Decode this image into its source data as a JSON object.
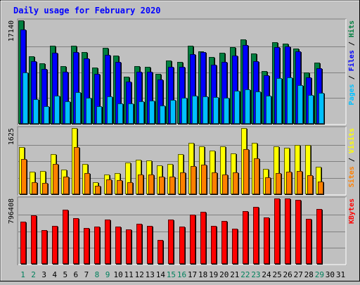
{
  "chart_data": {
    "title": "Daily usage for February 2020",
    "type": "bar",
    "categories": [
      "1",
      "2",
      "3",
      "4",
      "5",
      "6",
      "7",
      "8",
      "9",
      "10",
      "11",
      "12",
      "13",
      "14",
      "15",
      "16",
      "17",
      "18",
      "19",
      "20",
      "21",
      "22",
      "23",
      "24",
      "25",
      "26",
      "27",
      "28",
      "29",
      "30",
      "31"
    ],
    "weekend_days": [
      "1",
      "2",
      "8",
      "9",
      "15",
      "16",
      "22",
      "23",
      "29"
    ],
    "panels": [
      {
        "id": "pages-files-hits",
        "max_label": "17140",
        "ymax": 17140,
        "side_labels": [
          {
            "text": "Pages",
            "color": "#00c0ff"
          },
          {
            "text": " / ",
            "color": "#000000"
          },
          {
            "text": "Files",
            "color": "#0000ff"
          },
          {
            "text": " / ",
            "color": "#000000"
          },
          {
            "text": "Hits",
            "color": "#008040"
          }
        ],
        "series": [
          {
            "name": "Hits",
            "color": "#008040",
            "values": [
              17140,
              11200,
              10000,
              12900,
              9600,
              12900,
              11900,
              9300,
              12600,
              11300,
              7800,
              9600,
              9500,
              8300,
              10500,
              10300,
              12900,
              12000,
              11100,
              11800,
              12700,
              14000,
              11700,
              8800,
              13500,
              13300,
              12500,
              8500,
              10100,
              0,
              0
            ]
          },
          {
            "name": "Files",
            "color": "#0000ff",
            "values": [
              15600,
              10400,
              9100,
              11800,
              8600,
              11900,
              10900,
              8300,
              11400,
              10300,
              7000,
              8600,
              8600,
              7400,
              9500,
              9400,
              11500,
              11900,
              9800,
              10300,
              11300,
              13100,
              10400,
              8000,
              12700,
              12800,
              12000,
              7700,
              9200,
              0,
              0
            ]
          },
          {
            "name": "Pages",
            "color": "#00c0ff",
            "values": [
              8500,
              4100,
              2900,
              4700,
              3700,
              5300,
              4300,
              2900,
              4500,
              3400,
              3400,
              3700,
              3900,
              3000,
              4000,
              4300,
              4700,
              4500,
              4400,
              4300,
              5500,
              5700,
              5400,
              4700,
              7600,
              7700,
              6400,
              4800,
              5100,
              0,
              0
            ]
          }
        ]
      },
      {
        "id": "visits-sites",
        "max_label": "1625",
        "ymax": 1625,
        "side_labels": [
          {
            "text": "Sites",
            "color": "#ff8000"
          },
          {
            "text": " / ",
            "color": "#000000"
          },
          {
            "text": "Visits",
            "color": "#ffff00"
          }
        ],
        "series": [
          {
            "name": "Visits",
            "color": "#ffff00",
            "values": [
              1150,
              550,
              570,
              980,
              600,
              1625,
              740,
              300,
              480,
              510,
              780,
              840,
              830,
              710,
              750,
              990,
              1260,
              1180,
              1080,
              1170,
              1000,
              1625,
              1270,
              630,
              1170,
              1140,
              1210,
              1210,
              680,
              0,
              0
            ]
          },
          {
            "name": "Sites",
            "color": "#ff8000",
            "values": [
              860,
              290,
              280,
              740,
              440,
              1160,
              510,
              210,
              370,
              340,
              300,
              490,
              490,
              430,
              440,
              540,
              700,
              720,
              530,
              490,
              540,
              1110,
              890,
              410,
              510,
              550,
              570,
              460,
              310,
              0,
              0
            ]
          }
        ]
      },
      {
        "id": "kbytes",
        "max_label": "796408",
        "ymax": 796408,
        "side_labels": [
          {
            "text": "KBytes",
            "color": "#ff0000"
          }
        ],
        "series": [
          {
            "name": "KBytes",
            "color": "#ff0000",
            "values": [
              514000,
              588000,
              412000,
              459000,
              660000,
              554000,
              436000,
              452000,
              536000,
              456000,
              422000,
              488000,
              466000,
              294000,
              536000,
              452000,
              600000,
              632000,
              459000,
              519000,
              428000,
              640000,
              692000,
              568000,
              796408,
              796408,
              780000,
              548000,
              668000,
              0,
              0
            ]
          }
        ]
      }
    ]
  }
}
